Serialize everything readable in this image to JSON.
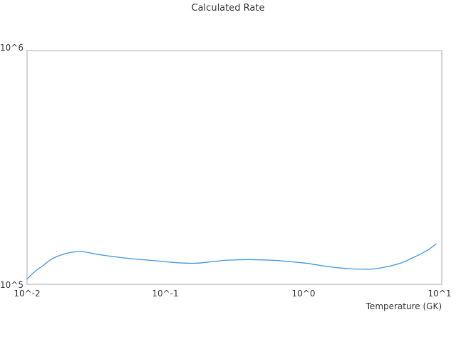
{
  "chart_data": {
    "type": "line",
    "title": "Calculated Rate",
    "xlabel": "Temperature (GK)",
    "ylabel": "",
    "x_scale": "log",
    "y_scale": "log",
    "xlim": [
      0.01,
      10
    ],
    "ylim": [
      100000,
      1000000
    ],
    "grid": false,
    "legend_position": "none",
    "x_tick_labels": [
      "10^-2",
      "10^-1",
      "10^0",
      "10^1"
    ],
    "y_tick_labels": [
      "10^5",
      "10^6"
    ],
    "series": [
      {
        "name": "calculated-rate",
        "color": "#54a1e4",
        "x": [
          0.01,
          0.0115,
          0.013,
          0.015,
          0.018,
          0.022,
          0.026,
          0.033,
          0.046,
          0.054,
          0.068,
          0.086,
          0.11,
          0.16,
          0.22,
          0.28,
          0.4,
          0.58,
          0.82,
          1.05,
          1.5,
          2.1,
          2.7,
          3.4,
          4.9,
          6.2,
          7.9,
          9.1
        ],
        "y": [
          105500,
          114000,
          120000,
          128000,
          134000,
          137500,
          137500,
          134000,
          130500,
          129000,
          127500,
          126000,
          124200,
          123000,
          125000,
          126800,
          127500,
          126800,
          124800,
          123000,
          119000,
          116600,
          116100,
          116800,
          122500,
          130000,
          140000,
          149000
        ]
      }
    ]
  },
  "style": {
    "line_color": "#54a1e4",
    "plot_border_color": "#d6d6d6",
    "text_color": "#3d3d3d",
    "background": "#ffffff"
  }
}
